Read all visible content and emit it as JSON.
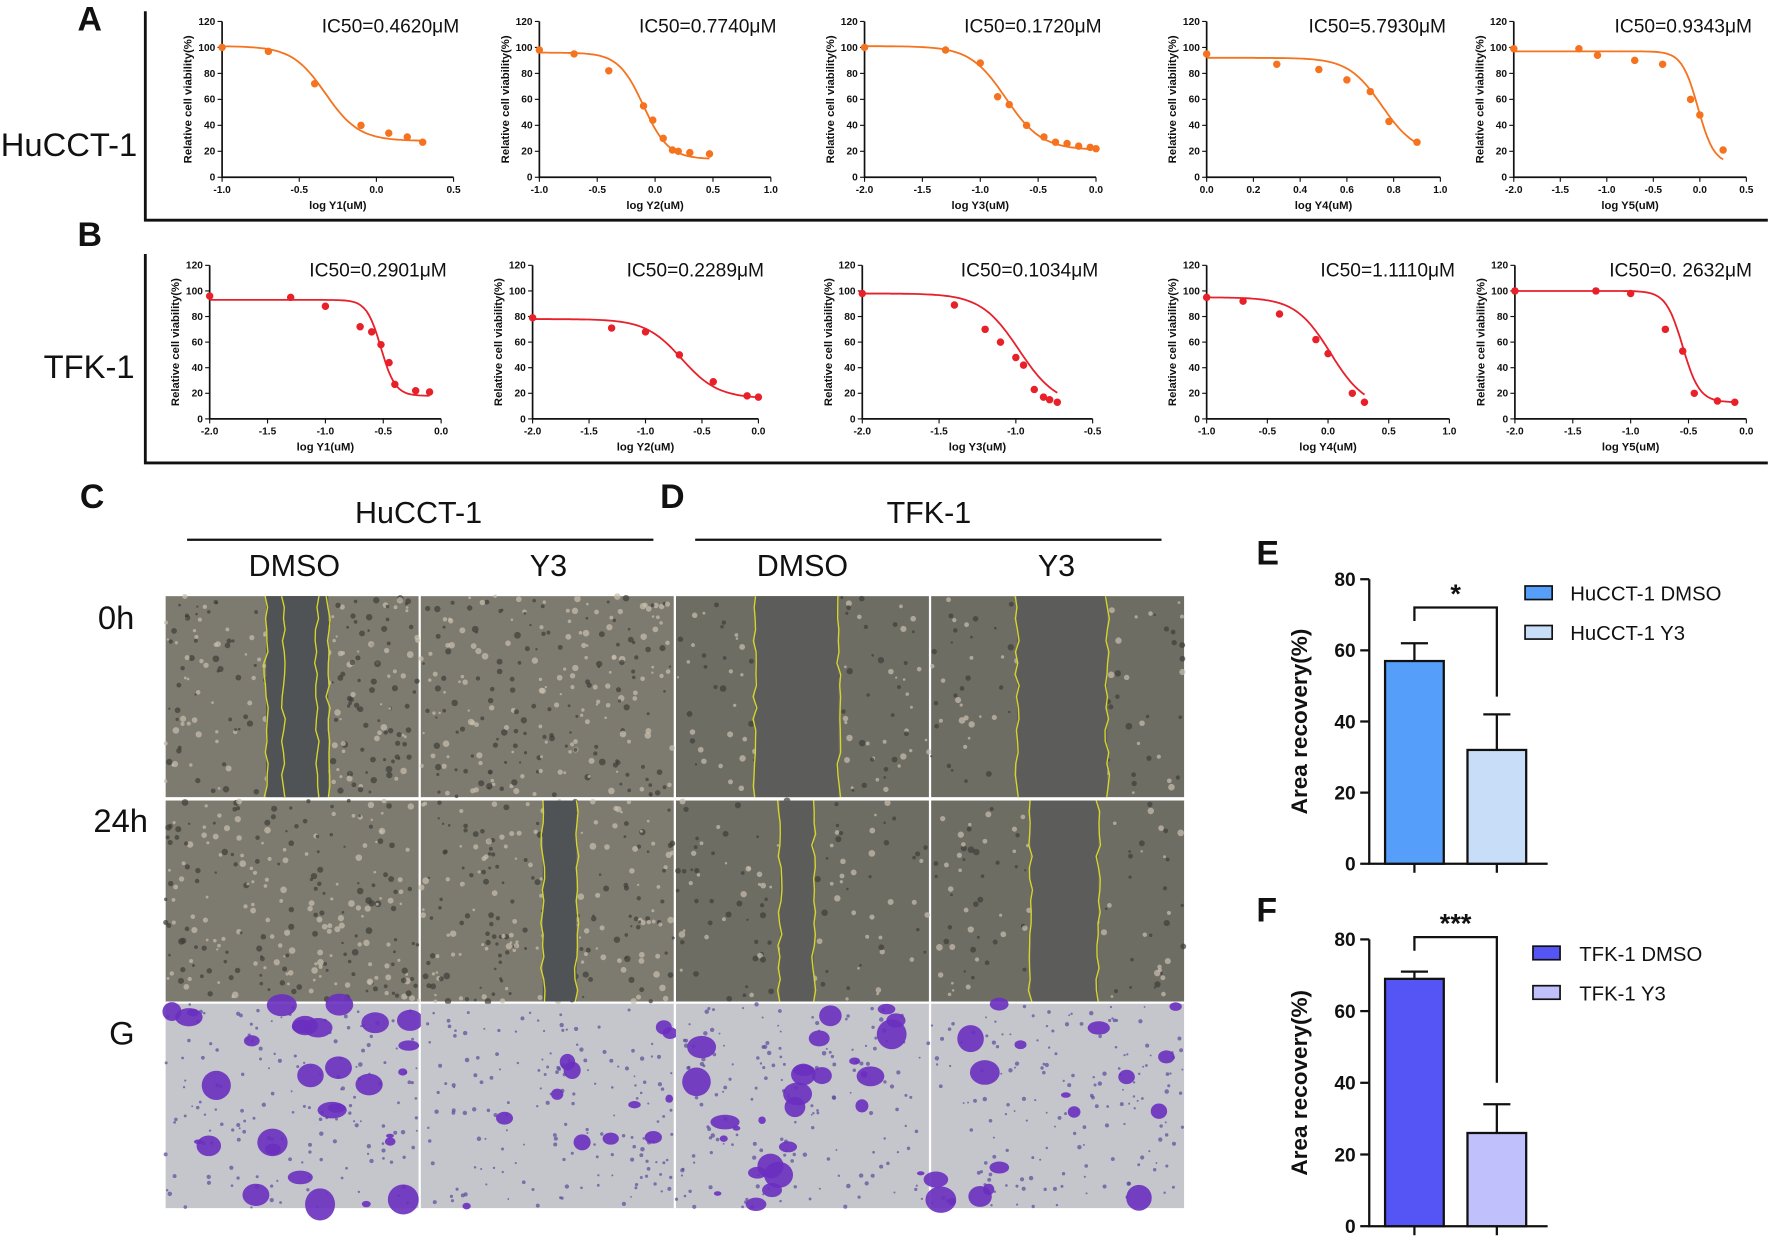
{
  "panel_labels": {
    "A": "A",
    "B": "B",
    "C": "C",
    "D": "D",
    "E": "E",
    "F": "F",
    "G": "G"
  },
  "row_labels": {
    "A": "HuCCT-1",
    "B": "TFK-1"
  },
  "scratch": {
    "C_title": "HuCCT-1",
    "D_title": "TFK-1",
    "col_labels": [
      "DMSO",
      "Y3",
      "DMSO",
      "Y3"
    ],
    "time_labels": [
      "0h",
      "24h"
    ]
  },
  "colors": {
    "hucct1_curve": "#f5731f",
    "tfk1_curve": "#e8202a",
    "hucct1_dmso": "#559ffa",
    "hucct1_y3": "#c8ddf7",
    "tfk1_dmso": "#5555f5",
    "tfk1_y3": "#c0c0fc"
  },
  "chart_data": [
    {
      "type": "line",
      "panel": "A",
      "ylabel": "Relative cell viability(%)",
      "xlabel": "log Y1(uM)",
      "ic50": "IC50=0.4620μM",
      "ylim": [
        0,
        120
      ],
      "xlim": [
        -1,
        0.5
      ],
      "xticks": [
        "-1.0",
        "-0.5",
        "0.0",
        "0.5"
      ],
      "x": [
        -1,
        -0.7,
        -0.4,
        -0.1,
        0.08,
        0.2,
        0.3
      ],
      "y": [
        100,
        97,
        72,
        40,
        34,
        31,
        27
      ],
      "fit": {
        "top": 101,
        "bottom": 28,
        "log_ic50": -0.33,
        "hill": 4
      }
    },
    {
      "type": "line",
      "panel": "A",
      "ylabel": "Relative cell viability(%)",
      "xlabel": "log Y2(uM)",
      "ic50": "IC50=0.7740μM",
      "ylim": [
        0,
        120
      ],
      "xlim": [
        -1,
        1
      ],
      "xticks": [
        "-1.0",
        "-0.5",
        "0.0",
        "0.5",
        "1.0"
      ],
      "x": [
        -1,
        -0.7,
        -0.4,
        -0.1,
        -0.02,
        0.07,
        0.15,
        0.2,
        0.3,
        0.47
      ],
      "y": [
        98,
        95,
        82,
        55,
        44,
        30,
        21,
        20,
        19,
        18
      ],
      "fit": {
        "top": 96,
        "bottom": 14,
        "log_ic50": -0.1,
        "hill": 4
      }
    },
    {
      "type": "line",
      "panel": "A",
      "ylabel": "Relative cell viability(%)",
      "xlabel": "log Y3(uM)",
      "ic50": "IC50=0.1720μM",
      "ylim": [
        0,
        120
      ],
      "xlim": [
        -2,
        0
      ],
      "xticks": [
        "-2.0",
        "-1.5",
        "-1.0",
        "-0.5",
        "0.0"
      ],
      "x": [
        -2,
        -1.3,
        -1.0,
        -0.85,
        -0.75,
        -0.6,
        -0.45,
        -0.35,
        -0.25,
        -0.15,
        -0.05,
        0
      ],
      "y": [
        100,
        98,
        88,
        62,
        56,
        40,
        31,
        27,
        26,
        24,
        23,
        22
      ],
      "fit": {
        "top": 101,
        "bottom": 21,
        "log_ic50": -0.78,
        "hill": 2.8
      }
    },
    {
      "type": "line",
      "panel": "A",
      "ylabel": "Relative cell viability(%)",
      "xlabel": "log Y4(uM)",
      "ic50": "IC50=5.7930μM",
      "ylim": [
        0,
        120
      ],
      "xlim": [
        0,
        1
      ],
      "xticks": [
        "0.0",
        "0.2",
        "0.4",
        "0.6",
        "0.8",
        "1.0"
      ],
      "x": [
        0,
        0.3,
        0.48,
        0.6,
        0.7,
        0.78,
        0.9
      ],
      "y": [
        95,
        87,
        83,
        75,
        66,
        43,
        27
      ],
      "fit": {
        "top": 92,
        "bottom": 18,
        "log_ic50": 0.75,
        "hill": 6
      }
    },
    {
      "type": "line",
      "panel": "A",
      "ylabel": "Relative cell viability(%)",
      "xlabel": "log Y5(uM)",
      "ic50": "IC50=0.9343μM",
      "ylim": [
        0,
        120
      ],
      "xlim": [
        -2,
        0.5
      ],
      "xticks": [
        "-2.0",
        "-1.5",
        "-1.0",
        "-0.5",
        "0.0",
        "0.5"
      ],
      "x": [
        -2,
        -1.3,
        -1.1,
        -0.7,
        -0.4,
        -0.1,
        0,
        0.25
      ],
      "y": [
        99,
        99,
        94,
        90,
        87,
        60,
        48,
        21
      ],
      "fit": {
        "top": 97,
        "bottom": 10,
        "log_ic50": -0.02,
        "hill": 5
      }
    },
    {
      "type": "line",
      "panel": "B",
      "ylabel": "Relative cell viability(%)",
      "xlabel": "log Y1(uM)",
      "ic50": "IC50=0.2901μM",
      "ylim": [
        0,
        120
      ],
      "xlim": [
        -2,
        0
      ],
      "xticks": [
        "-2.0",
        "-1.5",
        "-1.0",
        "-0.5",
        "0.0"
      ],
      "x": [
        -2,
        -1.3,
        -1.0,
        -0.7,
        -0.6,
        -0.52,
        -0.45,
        -0.4,
        -0.22,
        -0.1
      ],
      "y": [
        96,
        95,
        88,
        72,
        68,
        58,
        44,
        27,
        22,
        21
      ],
      "fit": {
        "top": 93,
        "bottom": 18,
        "log_ic50": -0.52,
        "hill": 7
      }
    },
    {
      "type": "line",
      "panel": "B",
      "ylabel": "Relative cell viability(%)",
      "xlabel": "log Y2(uM)",
      "ic50": "IC50=0.2289μM",
      "ylim": [
        0,
        120
      ],
      "xlim": [
        -2,
        0
      ],
      "xticks": [
        "-2.0",
        "-1.5",
        "-1.0",
        "-0.5",
        "0.0"
      ],
      "x": [
        -2,
        -1.3,
        -1.0,
        -0.7,
        -0.4,
        -0.1,
        0
      ],
      "y": [
        79,
        71,
        68,
        50,
        29,
        18,
        17
      ],
      "fit": {
        "top": 78,
        "bottom": 16,
        "log_ic50": -0.68,
        "hill": 2.7
      }
    },
    {
      "type": "line",
      "panel": "B",
      "ylabel": "Relative cell viability(%)",
      "xlabel": "log Y3(uM)",
      "ic50": "IC50=0.1034μM",
      "ylim": [
        0,
        120
      ],
      "xlim": [
        -2,
        -0.5
      ],
      "xticks": [
        "-2.0",
        "-1.5",
        "-1.0",
        "-0.5"
      ],
      "x": [
        -2,
        -1.4,
        -1.2,
        -1.1,
        -1.0,
        -0.95,
        -0.88,
        -0.82,
        -0.78,
        -0.73
      ],
      "y": [
        98,
        89,
        70,
        60,
        48,
        42,
        23,
        17,
        15,
        13
      ],
      "fit": {
        "top": 98,
        "bottom": 10,
        "log_ic50": -0.98,
        "hill": 3.5
      }
    },
    {
      "type": "line",
      "panel": "B",
      "ylabel": "Relative cell viability(%)",
      "xlabel": "log Y4(uM)",
      "ic50": "IC50=1.1110μM",
      "ylim": [
        0,
        120
      ],
      "xlim": [
        -1,
        1
      ],
      "xticks": [
        "-1.0",
        "-0.5",
        "0.0",
        "0.5",
        "1.0"
      ],
      "x": [
        -1,
        -0.7,
        -0.4,
        -0.1,
        0,
        0.2,
        0.3
      ],
      "y": [
        95,
        92,
        82,
        62,
        51,
        20,
        13
      ],
      "fit": {
        "top": 95,
        "bottom": 8,
        "log_ic50": 0.02,
        "hill": 3
      }
    },
    {
      "type": "line",
      "panel": "B",
      "ylabel": "Relative cell viability(%)",
      "xlabel": "log Y5(uM)",
      "ic50": "IC50=0. 2632μM",
      "ylim": [
        0,
        120
      ],
      "xlim": [
        -2,
        0
      ],
      "xticks": [
        "-2.0",
        "-1.5",
        "-1.0",
        "-0.5",
        "0.0"
      ],
      "x": [
        -2,
        -1.3,
        -1.0,
        -0.7,
        -0.55,
        -0.45,
        -0.25,
        -0.1
      ],
      "y": [
        100,
        100,
        98,
        70,
        53,
        20,
        14,
        13
      ],
      "fit": {
        "top": 100,
        "bottom": 13,
        "log_ic50": -0.55,
        "hill": 6
      }
    },
    {
      "type": "bar",
      "panel": "E",
      "ylabel": "Area recovery(%)",
      "ylim": [
        0,
        80
      ],
      "yticks": [
        "0",
        "20",
        "40",
        "60",
        "80"
      ],
      "categories": [
        "HuCCT-1 DMSO",
        "HuCCT-1 Y3"
      ],
      "values": [
        57,
        32
      ],
      "errors": [
        5,
        10
      ],
      "significance": "*"
    },
    {
      "type": "bar",
      "panel": "F",
      "ylabel": "Area recovery(%)",
      "ylim": [
        0,
        80
      ],
      "yticks": [
        "0",
        "20",
        "40",
        "60",
        "80"
      ],
      "categories": [
        "TFK-1 DMSO",
        "TFK-1 Y3"
      ],
      "values": [
        69,
        26
      ],
      "errors": [
        2,
        8
      ],
      "significance": "***"
    }
  ]
}
